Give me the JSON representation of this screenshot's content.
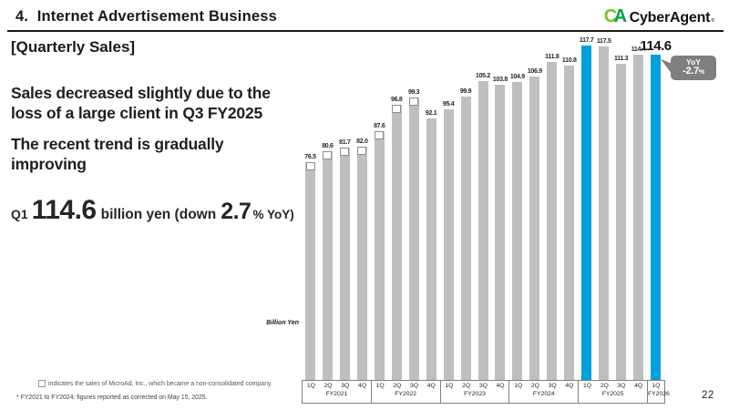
{
  "header": {
    "title": "4.  Internet Advertisement Business",
    "logo": {
      "c": "C",
      "a": "A",
      "name": "CyberAgent",
      "reg": "®"
    }
  },
  "left_panel": {
    "section_label": "[Quarterly Sales]",
    "para1_line1": "Sales decreased slightly due to the",
    "para1_line2": "loss of a large client in Q3 FY2025",
    "para2_line1": "The recent trend is gradually",
    "para2_line2": "improving",
    "stat": {
      "quarter": "Q1",
      "value": "114.6",
      "mid": "billion yen (down",
      "pct": "2.7",
      "tail": "% YoY)"
    }
  },
  "chart_data": {
    "type": "bar",
    "unit_label": "Billion Yen",
    "groups": [
      {
        "label": "FY2021",
        "quarters": [
          "1Q",
          "2Q",
          "3Q",
          "4Q"
        ]
      },
      {
        "label": "FY2022",
        "quarters": [
          "1Q",
          "2Q",
          "3Q",
          "4Q"
        ]
      },
      {
        "label": "FY2023",
        "quarters": [
          "1Q",
          "2Q",
          "3Q",
          "4Q"
        ]
      },
      {
        "label": "FY2024",
        "quarters": [
          "1Q",
          "2Q",
          "3Q",
          "4Q"
        ]
      },
      {
        "label": "FY2025",
        "quarters": [
          "1Q",
          "2Q",
          "3Q",
          "4Q"
        ]
      },
      {
        "label": "FY2026",
        "quarters": [
          "1Q"
        ]
      }
    ],
    "values": [
      76.5,
      80.6,
      81.7,
      82.0,
      87.6,
      96.8,
      99.3,
      92.1,
      95.4,
      99.9,
      105.2,
      103.8,
      104.9,
      106.9,
      111.8,
      110.8,
      117.7,
      117.5,
      111.3,
      114.4,
      114.6
    ],
    "highlight_indices": [
      16,
      20
    ],
    "microad_square_indices": [
      0,
      1,
      2,
      3,
      4,
      5,
      6
    ],
    "emphasis_index": 20,
    "ylim": [
      0,
      120
    ],
    "colors": {
      "bar": "#BFBFBF",
      "highlight": "#00A0DC",
      "square_border": "#8C8C8C",
      "callout_bg": "#7F7F7F"
    },
    "callout": {
      "label": "YoY",
      "value": "-2.7",
      "percent_sign": "%",
      "target_index": 20
    }
  },
  "footnotes": {
    "legend": "indicates the sales of MicroAd, Inc., which became a non-consolidated company.",
    "correction": "* FY2021 to FY2024: figures reported as corrected on May 15, 2025."
  },
  "page_number": "22"
}
